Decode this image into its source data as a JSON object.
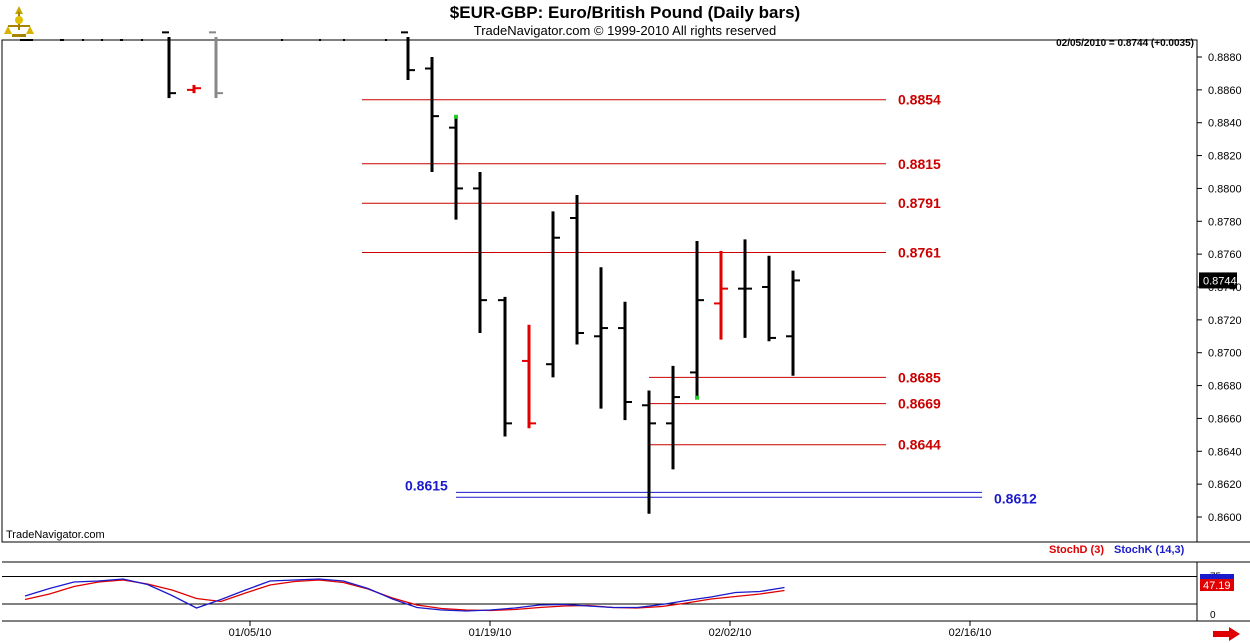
{
  "header": {
    "title": "$EUR-GBP:  Euro/British Pound  (Daily bars)",
    "subtitle": "TradeNavigator.com © 1999-2010 All rights reserved",
    "quote": "02/05/2010 = 0.8744 (+0.0035)",
    "watermark": "TradeNavigator.com"
  },
  "lower_panel": {
    "stochd_label": "StochD (3)",
    "stochk_label": "StochK (14,3)",
    "last_value": "47.19"
  },
  "colors": {
    "up_bar": "#000000",
    "down_bar": "#e00000",
    "red_level": "#cc0000",
    "blue_level": "#1a1acc",
    "grid": "#000000"
  },
  "chart_data": [
    {
      "type": "bar",
      "subtype": "ohlc",
      "title": "$EUR-GBP:  Euro/British Pound  (Daily bars)",
      "ylim": [
        0.8592,
        0.8895
      ],
      "y_ticks": [
        "0.8880",
        "0.8860",
        "0.8840",
        "0.8820",
        "0.8800",
        "0.8780",
        "0.8760",
        "0.8740",
        "0.8720",
        "0.8700",
        "0.8680",
        "0.8660",
        "0.8640",
        "0.8620",
        "0.8600"
      ],
      "last_price_label": "0.8744",
      "x_ticks": [
        "01/05/10",
        "01/19/10",
        "02/02/10",
        "02/16/10"
      ],
      "bars": [
        {
          "high": 0.8895,
          "low": 0.8855,
          "open": 0.8895,
          "close": 0.8858,
          "color": "black"
        },
        {
          "high": 0.8863,
          "low": 0.8858,
          "open": 0.886,
          "close": 0.8861,
          "color": "red"
        },
        {
          "high": 0.8895,
          "low": 0.8855,
          "open": 0.8895,
          "close": 0.8858,
          "color": "gray"
        },
        {
          "high": 0.8895,
          "low": 0.8866,
          "open": 0.8895,
          "close": 0.8872,
          "color": "black"
        },
        {
          "high": 0.888,
          "low": 0.881,
          "open": 0.8873,
          "close": 0.8844,
          "color": "black"
        },
        {
          "high": 0.8843,
          "low": 0.8781,
          "open": 0.8837,
          "close": 0.88,
          "color": "black"
        },
        {
          "high": 0.881,
          "low": 0.8712,
          "open": 0.88,
          "close": 0.8732,
          "color": "black"
        },
        {
          "high": 0.8734,
          "low": 0.8649,
          "open": 0.8732,
          "close": 0.8657,
          "color": "black"
        },
        {
          "high": 0.8717,
          "low": 0.8654,
          "open": 0.8695,
          "close": 0.8657,
          "color": "red"
        },
        {
          "high": 0.8786,
          "low": 0.8685,
          "open": 0.8693,
          "close": 0.877,
          "color": "black"
        },
        {
          "high": 0.8796,
          "low": 0.8705,
          "open": 0.8782,
          "close": 0.8712,
          "color": "black"
        },
        {
          "high": 0.8752,
          "low": 0.8666,
          "open": 0.871,
          "close": 0.8715,
          "color": "black"
        },
        {
          "high": 0.8731,
          "low": 0.8659,
          "open": 0.8715,
          "close": 0.867,
          "color": "black"
        },
        {
          "high": 0.8677,
          "low": 0.8602,
          "open": 0.8668,
          "close": 0.8657,
          "color": "black"
        },
        {
          "high": 0.8692,
          "low": 0.8629,
          "open": 0.8657,
          "close": 0.8673,
          "color": "black"
        },
        {
          "high": 0.8768,
          "low": 0.8672,
          "open": 0.8688,
          "close": 0.8732,
          "color": "black"
        },
        {
          "high": 0.8762,
          "low": 0.8708,
          "open": 0.873,
          "close": 0.8739,
          "color": "red"
        },
        {
          "high": 0.8769,
          "low": 0.8709,
          "open": 0.8739,
          "close": 0.8739,
          "color": "black"
        },
        {
          "high": 0.8759,
          "low": 0.8707,
          "open": 0.874,
          "close": 0.8709,
          "color": "black"
        },
        {
          "high": 0.875,
          "low": 0.8686,
          "open": 0.871,
          "close": 0.8744,
          "color": "black"
        }
      ],
      "levels": [
        {
          "value": 0.8854,
          "label": "0.8854",
          "color": "red"
        },
        {
          "value": 0.8815,
          "label": "0.8815",
          "color": "red"
        },
        {
          "value": 0.8791,
          "label": "0.8791",
          "color": "red"
        },
        {
          "value": 0.8761,
          "label": "0.8761",
          "color": "red"
        },
        {
          "value": 0.8685,
          "label": "0.8685",
          "color": "red"
        },
        {
          "value": 0.8669,
          "label": "0.8669",
          "color": "red"
        },
        {
          "value": 0.8644,
          "label": "0.8644",
          "color": "red"
        },
        {
          "value": 0.8615,
          "label": "0.8615",
          "color": "blue"
        },
        {
          "value": 0.8612,
          "label": "0.8612",
          "color": "blue"
        }
      ]
    },
    {
      "type": "line",
      "ylim": [
        0,
        100
      ],
      "y_ticks": [
        "75",
        "0"
      ],
      "series": [
        {
          "name": "StochD (3)",
          "color": "red",
          "values": [
            29,
            40,
            55,
            64,
            68,
            60,
            48,
            31,
            25,
            42,
            58,
            65,
            68,
            63,
            50,
            32,
            18,
            11,
            8,
            7,
            9,
            13,
            16,
            17,
            13,
            12,
            15,
            22,
            30,
            35,
            40,
            47
          ]
        },
        {
          "name": "StochK (14,3)",
          "color": "blue",
          "values": [
            36,
            51,
            64,
            66,
            70,
            59,
            37,
            12,
            29,
            48,
            66,
            68,
            70,
            66,
            51,
            30,
            13,
            8,
            6,
            8,
            12,
            18,
            19,
            16,
            13,
            13,
            19,
            27,
            34,
            43,
            45,
            53
          ]
        }
      ]
    }
  ]
}
